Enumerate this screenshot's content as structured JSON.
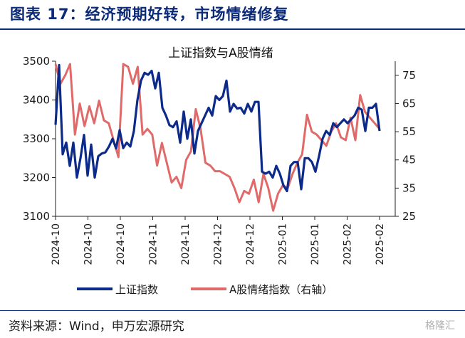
{
  "figure_title": "图表 17：经济预期好转，市场情绪修复",
  "source": "资料来源：Wind，申万宏源研究",
  "watermark": "格隆汇",
  "chart_data": {
    "type": "line",
    "title": "上证指数与A股情绪",
    "left_axis": {
      "ylim": [
        3100,
        3500
      ],
      "ticks": [
        3100,
        3200,
        3300,
        3400,
        3500
      ]
    },
    "right_axis": {
      "ylim": [
        25,
        80
      ],
      "ticks": [
        25,
        35,
        45,
        55,
        65,
        75
      ]
    },
    "x_tick_labels": [
      "2024-10",
      "2024-10",
      "2024-10",
      "2024-11",
      "2024-11",
      "2024-12",
      "2024-12",
      "2025-01",
      "2025-01",
      "2025-02",
      "2025-02"
    ],
    "grid": false,
    "legend_position": "bottom",
    "series": [
      {
        "name": "上证指数",
        "axis": "left",
        "color": "#0b2a8a",
        "values": [
          3336,
          3490,
          3260,
          3290,
          3230,
          3290,
          3200,
          3250,
          3310,
          3205,
          3285,
          3200,
          3255,
          3262,
          3265,
          3280,
          3300,
          3275,
          3322,
          3276,
          3290,
          3280,
          3320,
          3400,
          3450,
          3470,
          3465,
          3475,
          3430,
          3470,
          3380,
          3360,
          3335,
          3330,
          3345,
          3290,
          3370,
          3300,
          3350,
          3262,
          3320,
          3340,
          3360,
          3380,
          3360,
          3410,
          3400,
          3410,
          3450,
          3370,
          3390,
          3378,
          3380,
          3365,
          3390,
          3370,
          3395,
          3395,
          3215,
          3210,
          3215,
          3200,
          3230,
          3210,
          3180,
          3165,
          3230,
          3240,
          3240,
          3170,
          3250,
          3250,
          3240,
          3215,
          3255,
          3300,
          3320,
          3310,
          3340,
          3330,
          3340,
          3350,
          3340,
          3350,
          3360,
          3380,
          3375,
          3320,
          3380,
          3380,
          3390,
          3320
        ]
      },
      {
        "name": "A股情绪指数（右轴）",
        "axis": "right",
        "color": "#e06a6a",
        "values": [
          79,
          72,
          75,
          79,
          54,
          65,
          57,
          64,
          58,
          66,
          59,
          58,
          52,
          46,
          79,
          78,
          72,
          78,
          54,
          56,
          54,
          43,
          51,
          44,
          37,
          39,
          35,
          45,
          48,
          63,
          56,
          44,
          43,
          41,
          41,
          40,
          39,
          35,
          30,
          34,
          33,
          38,
          30,
          40,
          35,
          27,
          33,
          36,
          35,
          40,
          44,
          47,
          61,
          55,
          54,
          52,
          50,
          55,
          58,
          53,
          52,
          60,
          52,
          68,
          62,
          60,
          58,
          56
        ]
      }
    ]
  }
}
